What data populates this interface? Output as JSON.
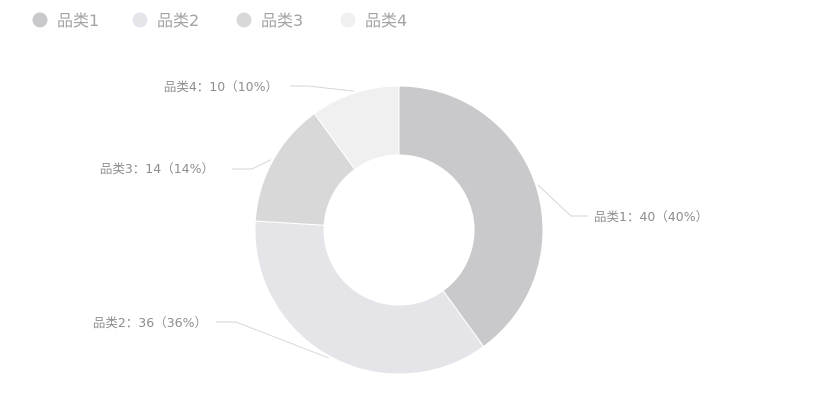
{
  "chart_data": {
    "type": "pie",
    "variant": "donut",
    "title": "",
    "legend_position": "top-left",
    "categories": [
      "品类1",
      "品类2",
      "品类3",
      "品类4"
    ],
    "values": [
      40,
      36,
      14,
      10
    ],
    "percent_labels": [
      "40%",
      "36%",
      "14%",
      "10%"
    ],
    "data_labels": [
      "品类1：40（40%）",
      "品类2：36（36%）",
      "品类3：14（14%）",
      "品类4：10（10%）"
    ],
    "colors": [
      "#c9c9cc",
      "#e5e5e9",
      "#d8d8d8",
      "#f0f0f0"
    ]
  }
}
